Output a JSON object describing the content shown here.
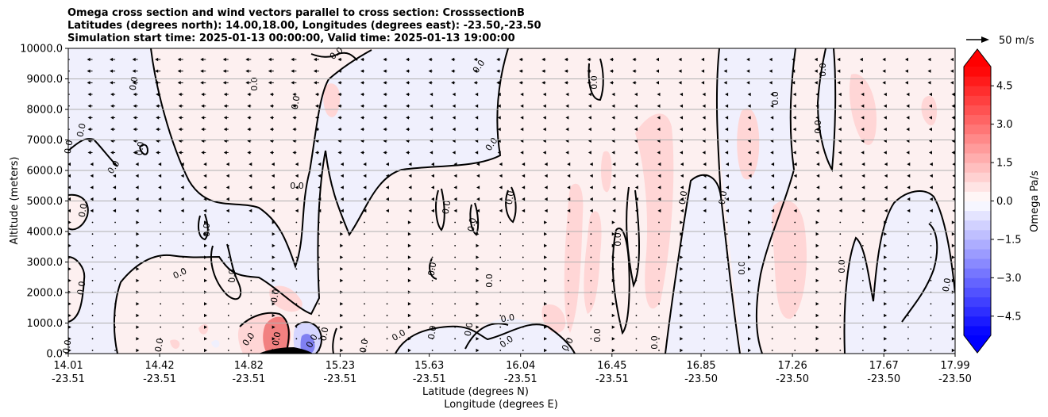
{
  "chart_data": {
    "type": "contour",
    "title_lines": [
      "Omega cross section and wind vectors parallel to cross section: CrosssectionB",
      "Latitudes (degrees north): 14.00,18.00, Longitudes (degrees east): -23.50,-23.50",
      "Simulation start time: 2025-01-13 00:00:00, Valid time: 2025-01-13 19:00:00"
    ],
    "ylabel": "Altitude (meters)",
    "xlabel_lines": [
      "Latitude (degrees N)",
      "Longitude (degrees E)"
    ],
    "ylim": [
      0,
      10000
    ],
    "y_ticks": [
      "0.0",
      "1000.0",
      "2000.0",
      "3000.0",
      "4000.0",
      "5000.0",
      "6000.0",
      "7000.0",
      "8000.0",
      "9000.0",
      "10000.0"
    ],
    "x_range": [
      14.01,
      17.99
    ],
    "x_ticks": [
      {
        "lat": "14.01",
        "lon": "-23.51"
      },
      {
        "lat": "14.42",
        "lon": "-23.51"
      },
      {
        "lat": "14.82",
        "lon": "-23.51"
      },
      {
        "lat": "15.23",
        "lon": "-23.51"
      },
      {
        "lat": "15.63",
        "lon": "-23.51"
      },
      {
        "lat": "16.04",
        "lon": "-23.51"
      },
      {
        "lat": "16.45",
        "lon": "-23.51"
      },
      {
        "lat": "16.85",
        "lon": "-23.50"
      },
      {
        "lat": "17.26",
        "lon": "-23.50"
      },
      {
        "lat": "17.67",
        "lon": "-23.50"
      },
      {
        "lat": "17.99",
        "lon": "-23.50"
      }
    ],
    "grid": "horizontal",
    "colorbar": {
      "label": "Omega Pa/s",
      "range": [
        -5.25,
        5.25
      ],
      "step": 0.375,
      "ticks": [
        "4.5",
        "3.0",
        "1.5",
        "0.0",
        "−1.5",
        "−3.0",
        "−4.5"
      ],
      "tick_values": [
        4.5,
        3.0,
        1.5,
        0.0,
        -1.5,
        -3.0,
        -4.5
      ],
      "colormap": "bwr"
    },
    "contour_label": "0.0",
    "quiver_key": {
      "label": "50 m/s",
      "speed": 50
    },
    "colors": {
      "positive_light": "#fdf0f0",
      "negative_light": "#f0f0fd",
      "positive_mid": "#ffd6d6",
      "negative_mid": "#d6d6ff",
      "strong_positive": "#f28080",
      "strong_negative": "#8080f2",
      "terrain": "#000000",
      "contour": "#000000"
    }
  }
}
